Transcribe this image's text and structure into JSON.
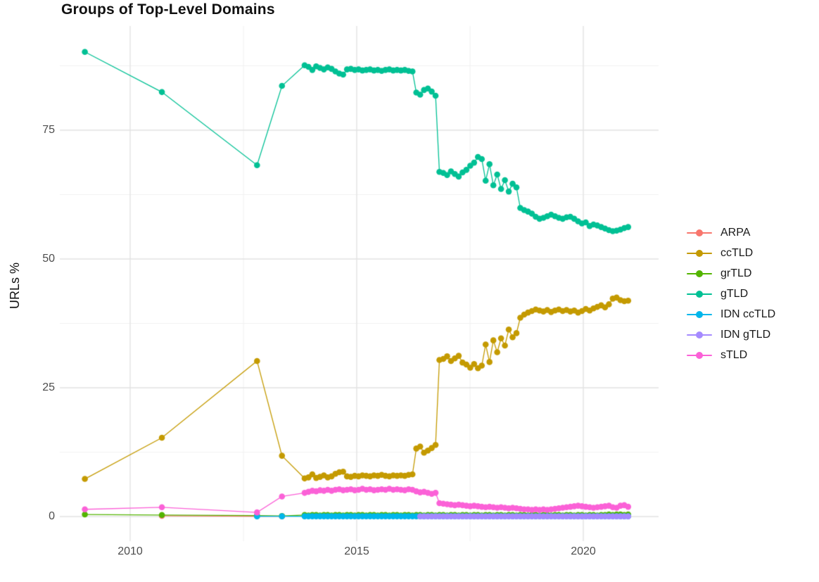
{
  "title": "Groups of Top-Level Domains",
  "y_axis": {
    "label": "URLs %"
  },
  "legend": {
    "position": "right",
    "items": [
      "ARPA",
      "ccTLD",
      "grTLD",
      "gTLD",
      "IDN ccTLD",
      "IDN gTLD",
      "sTLD"
    ]
  },
  "chart_data": {
    "type": "line",
    "title": "Groups of Top-Level Domains",
    "xlabel": "",
    "ylabel": "URLs %",
    "legend_position": "right",
    "grid": true,
    "background": "#ffffff",
    "major_grid_color": "#e2e2e2",
    "minor_grid_color": "#f0f0f0",
    "x_ticks": [
      2010,
      2015,
      2020
    ],
    "x_tick_labels": [
      "2010",
      "2015",
      "2020"
    ],
    "y_ticks": [
      0,
      25,
      50,
      75
    ],
    "y_tick_labels": [
      "0",
      "25",
      "50",
      "75"
    ],
    "x_minor_gridlines": [
      2012.5,
      2017.5
    ],
    "y_minor_gridlines": [
      12.5,
      37.5,
      62.5,
      87.5
    ],
    "x_range": [
      2008.45,
      2021.66
    ],
    "y_range": [
      -4.8,
      95.2
    ],
    "x_dense": [
      2013.85,
      2013.935,
      2014.02,
      2014.105,
      2014.19,
      2014.275,
      2014.36,
      2014.445,
      2014.53,
      2014.615,
      2014.7,
      2014.785,
      2014.87,
      2014.955,
      2015.04,
      2015.125,
      2015.21,
      2015.295,
      2015.38,
      2015.465,
      2015.55,
      2015.635,
      2015.72,
      2015.805,
      2015.89,
      2015.975,
      2016.06,
      2016.145,
      2016.23,
      2016.315,
      2016.4,
      2016.485,
      2016.57,
      2016.655,
      2016.74,
      2016.825,
      2016.91,
      2016.995,
      2017.08,
      2017.165,
      2017.25,
      2017.335,
      2017.42,
      2017.505,
      2017.59,
      2017.675,
      2017.76,
      2017.845,
      2017.93,
      2018.015,
      2018.1,
      2018.185,
      2018.27,
      2018.355,
      2018.44,
      2018.525,
      2018.61,
      2018.695,
      2018.78,
      2018.865,
      2018.95,
      2019.035,
      2019.12,
      2019.205,
      2019.29,
      2019.375,
      2019.46,
      2019.545,
      2019.63,
      2019.715,
      2019.8,
      2019.885,
      2019.97,
      2020.055,
      2020.14,
      2020.225,
      2020.31,
      2020.395,
      2020.48,
      2020.565,
      2020.65,
      2020.735,
      2020.82,
      2020.905,
      2020.99
    ],
    "series": [
      {
        "name": "ARPA",
        "color": "#F8766D",
        "use_dense_x": false,
        "x_start": [
          2010.7,
          2012.8,
          2013.35
        ],
        "y": [
          0.15,
          0.07,
          0.05
        ]
      },
      {
        "name": "ccTLD",
        "color": "#C49A00",
        "use_dense_x": true,
        "dense_from_index": 0,
        "x_start": [
          2009.0,
          2010.7,
          2012.8,
          2013.35
        ],
        "y": [
          7.3,
          15.3,
          30.2,
          11.8,
          7.4,
          7.6,
          8.2,
          7.5,
          7.7,
          8.0,
          7.6,
          7.8,
          8.3,
          8.6,
          8.7,
          7.8,
          7.7,
          7.9,
          7.8,
          8.0,
          7.9,
          7.8,
          8.0,
          7.9,
          8.1,
          7.9,
          7.8,
          8.0,
          7.9,
          8.0,
          7.9,
          8.1,
          8.2,
          13.2,
          13.6,
          12.4,
          12.8,
          13.3,
          13.9,
          30.4,
          30.6,
          31.1,
          30.2,
          30.7,
          31.2,
          29.9,
          29.5,
          28.9,
          29.6,
          28.8,
          29.3,
          33.4,
          30.0,
          34.2,
          31.9,
          34.6,
          33.2,
          36.3,
          34.8,
          35.6,
          38.6,
          39.2,
          39.6,
          39.9,
          40.2,
          40.0,
          39.8,
          40.1,
          39.7,
          40.0,
          40.2,
          39.9,
          40.1,
          39.8,
          40.0,
          39.6,
          39.9,
          40.3,
          40.0,
          40.4,
          40.7,
          41.0,
          40.6,
          41.2,
          42.3,
          42.5,
          42.0,
          41.8,
          41.9
        ]
      },
      {
        "name": "grTLD",
        "color": "#53B400",
        "use_dense_x": true,
        "dense_from_index": 0,
        "x_start": [
          2009.0,
          2010.7,
          2012.8,
          2013.35
        ],
        "y": [
          0.4,
          0.3,
          0.2,
          0.1,
          0.3,
          0.2,
          0.3,
          0.3,
          0.2,
          0.3,
          0.3,
          0.2,
          0.3,
          0.3,
          0.2,
          0.3,
          0.3,
          0.2,
          0.3,
          0.3,
          0.2,
          0.3,
          0.3,
          0.2,
          0.3,
          0.3,
          0.2,
          0.3,
          0.3,
          0.2,
          0.3,
          0.3,
          0.2,
          0.3,
          0.3,
          0.2,
          0.3,
          0.3,
          0.2,
          0.3,
          0.3,
          0.2,
          0.3,
          0.3,
          0.2,
          0.3,
          0.3,
          0.2,
          0.3,
          0.3,
          0.2,
          0.3,
          0.3,
          0.2,
          0.3,
          0.3,
          0.2,
          0.3,
          0.3,
          0.2,
          0.3,
          0.3,
          0.2,
          0.3,
          0.3,
          0.2,
          0.3,
          0.3,
          0.2,
          0.3,
          0.3,
          0.2,
          0.3,
          0.3,
          0.2,
          0.3,
          0.3,
          0.2,
          0.3,
          0.3,
          0.2,
          0.3,
          0.3,
          0.4,
          0.3,
          0.4,
          0.4,
          0.3,
          0.4
        ]
      },
      {
        "name": "gTLD",
        "color": "#00C094",
        "use_dense_x": true,
        "dense_from_index": 0,
        "x_start": [
          2009.0,
          2010.7,
          2012.8,
          2013.35
        ],
        "y": [
          90.2,
          82.4,
          68.2,
          83.6,
          87.6,
          87.3,
          86.7,
          87.4,
          87.1,
          86.8,
          87.2,
          86.9,
          86.4,
          86.0,
          85.8,
          86.8,
          86.9,
          86.7,
          86.8,
          86.6,
          86.7,
          86.8,
          86.6,
          86.7,
          86.5,
          86.7,
          86.8,
          86.6,
          86.7,
          86.6,
          86.7,
          86.5,
          86.4,
          82.3,
          81.9,
          82.8,
          83.1,
          82.5,
          81.7,
          66.9,
          66.7,
          66.3,
          67.0,
          66.5,
          66.0,
          66.8,
          67.3,
          68.1,
          68.7,
          69.8,
          69.4,
          65.2,
          68.4,
          64.3,
          66.4,
          63.6,
          65.3,
          63.1,
          64.6,
          63.9,
          59.9,
          59.5,
          59.2,
          58.8,
          58.2,
          57.8,
          58.0,
          58.3,
          58.6,
          58.3,
          58.0,
          57.8,
          58.1,
          58.2,
          57.8,
          57.3,
          56.9,
          57.1,
          56.4,
          56.7,
          56.5,
          56.2,
          55.9,
          55.6,
          55.4,
          55.5,
          55.7,
          56.0,
          56.2
        ]
      },
      {
        "name": "IDN ccTLD",
        "color": "#00B6EB",
        "use_dense_x": true,
        "dense_from_index": 0,
        "x_start": [
          2012.8,
          2013.35
        ],
        "y": [
          0.05,
          0.05,
          0.05,
          0.05,
          0.05,
          0.05,
          0.05,
          0.05,
          0.05,
          0.05,
          0.05,
          0.05,
          0.05,
          0.05,
          0.05,
          0.05,
          0.05,
          0.05,
          0.05,
          0.05,
          0.05,
          0.05,
          0.05,
          0.05,
          0.05,
          0.05,
          0.05,
          0.05,
          0.05,
          0.05,
          0.05,
          0.05,
          0.05,
          0.05,
          0.05,
          0.05,
          0.05,
          0.05,
          0.05,
          0.05,
          0.05,
          0.05,
          0.05,
          0.05,
          0.05,
          0.05,
          0.05,
          0.05,
          0.05,
          0.05,
          0.05,
          0.05,
          0.05,
          0.05,
          0.05,
          0.05,
          0.05,
          0.05,
          0.05,
          0.05,
          0.05,
          0.05,
          0.05,
          0.05,
          0.05,
          0.05,
          0.05,
          0.05,
          0.05,
          0.05,
          0.05,
          0.05,
          0.05,
          0.05,
          0.05,
          0.05,
          0.05,
          0.05,
          0.05,
          0.05,
          0.05,
          0.05,
          0.05,
          0.05,
          0.05,
          0.05,
          0.05
        ]
      },
      {
        "name": "IDN gTLD",
        "color": "#A58AFF",
        "use_dense_x": true,
        "dense_from_index": 30,
        "x_start": [],
        "y": [
          0.03,
          0.03,
          0.03,
          0.03,
          0.03,
          0.03,
          0.03,
          0.03,
          0.03,
          0.03,
          0.03,
          0.03,
          0.03,
          0.03,
          0.03,
          0.03,
          0.03,
          0.03,
          0.03,
          0.03,
          0.03,
          0.03,
          0.03,
          0.03,
          0.03,
          0.03,
          0.03,
          0.03,
          0.03,
          0.03,
          0.03,
          0.03,
          0.03,
          0.03,
          0.03,
          0.03,
          0.03,
          0.03,
          0.03,
          0.03,
          0.03,
          0.03,
          0.03,
          0.03,
          0.03,
          0.03,
          0.03,
          0.03,
          0.03,
          0.03,
          0.03,
          0.03,
          0.03,
          0.03,
          0.03
        ]
      },
      {
        "name": "sTLD",
        "color": "#FB61D7",
        "use_dense_x": true,
        "dense_from_index": 0,
        "x_start": [
          2009.0,
          2010.7,
          2012.8,
          2013.35
        ],
        "y": [
          1.4,
          1.8,
          0.8,
          3.9,
          4.6,
          4.8,
          5.0,
          4.9,
          5.1,
          5.0,
          5.2,
          5.0,
          5.2,
          5.3,
          5.1,
          5.2,
          5.3,
          5.1,
          5.2,
          5.4,
          5.2,
          5.3,
          5.1,
          5.2,
          5.3,
          5.2,
          5.4,
          5.2,
          5.3,
          5.2,
          5.1,
          5.3,
          5.2,
          4.9,
          4.7,
          4.8,
          4.6,
          4.4,
          4.6,
          2.6,
          2.5,
          2.4,
          2.3,
          2.2,
          2.3,
          2.2,
          2.1,
          2.0,
          2.1,
          2.0,
          1.9,
          1.8,
          1.9,
          1.8,
          1.7,
          1.8,
          1.7,
          1.6,
          1.7,
          1.6,
          1.5,
          1.4,
          1.4,
          1.3,
          1.4,
          1.3,
          1.4,
          1.3,
          1.4,
          1.5,
          1.6,
          1.7,
          1.8,
          1.9,
          2.0,
          2.1,
          2.0,
          1.9,
          1.8,
          1.7,
          1.8,
          1.9,
          2.0,
          2.1,
          1.8,
          1.7,
          2.1,
          2.2,
          1.9
        ]
      }
    ]
  }
}
